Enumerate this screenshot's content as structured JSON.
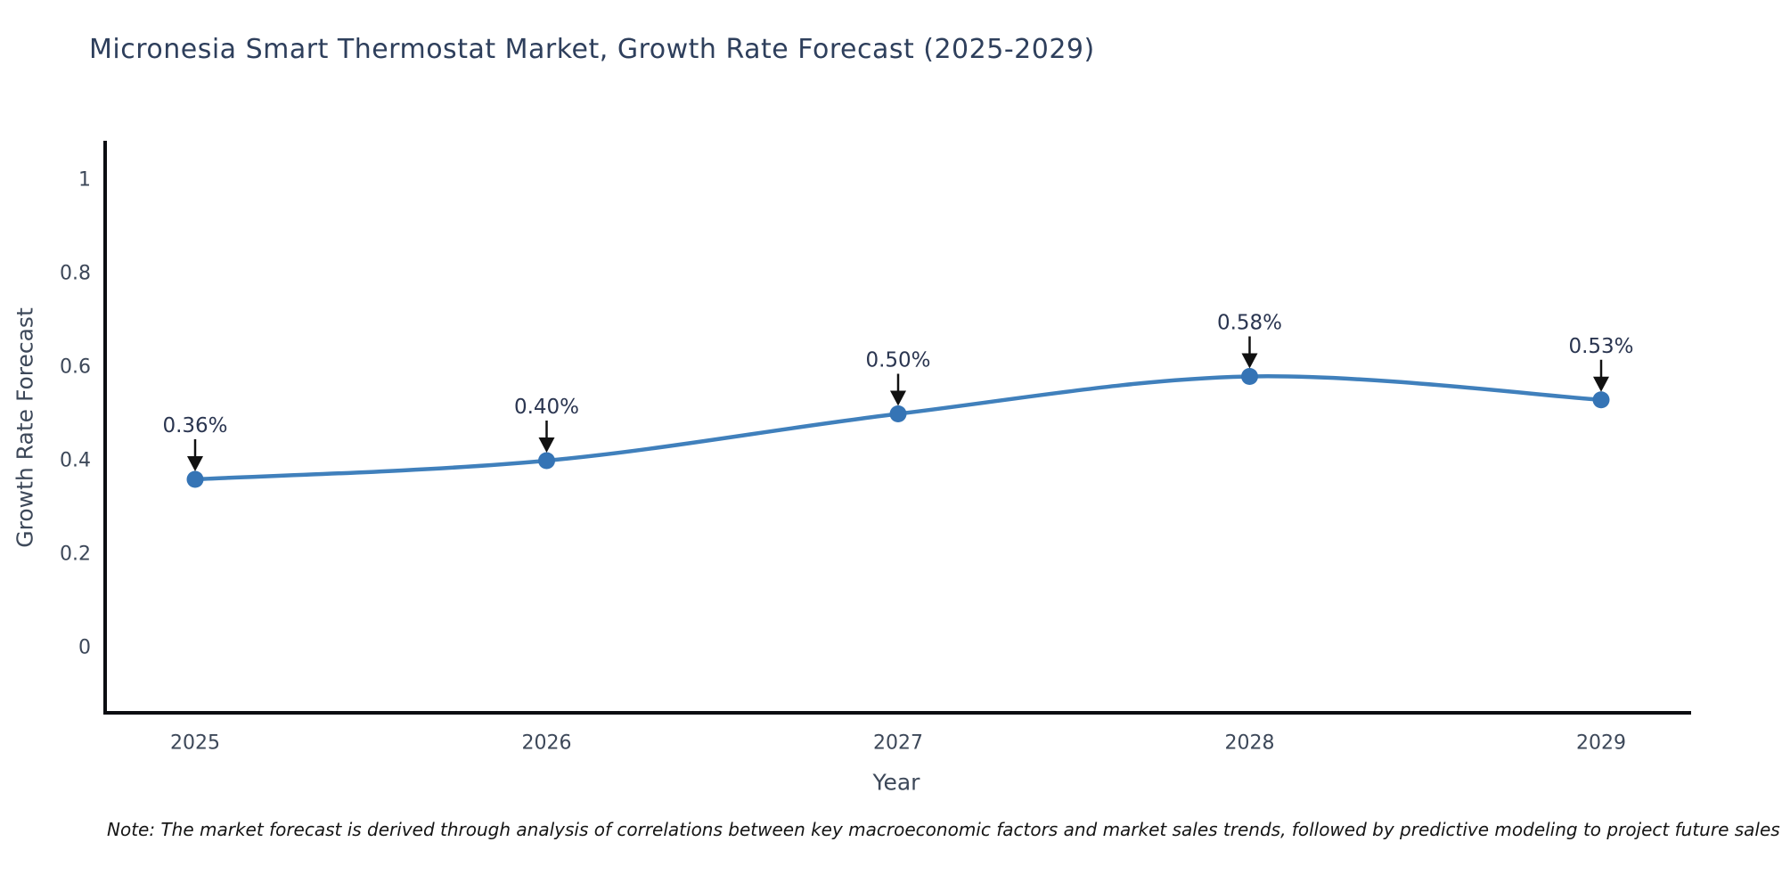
{
  "title": "Micronesia Smart Thermostat Market, Growth Rate Forecast (2025-2029)",
  "note": "Note: The market forecast is derived through analysis of correlations between key macroeconomic factors and market sales trends, followed by predictive modeling to project future sales",
  "chart_data": {
    "type": "line",
    "title": "Micronesia Smart Thermostat Market, Growth Rate Forecast (2025-2029)",
    "x": [
      2025,
      2026,
      2027,
      2028,
      2029
    ],
    "xtick_labels": [
      "2025",
      "2026",
      "2027",
      "2028",
      "2029"
    ],
    "series": [
      {
        "name": "Growth Rate Forecast",
        "values": [
          0.36,
          0.4,
          0.5,
          0.58,
          0.53
        ]
      }
    ],
    "point_labels": [
      "0.36%",
      "0.40%",
      "0.50%",
      "0.58%",
      "0.53%"
    ],
    "xlabel": "Year",
    "ylabel": "Growth Rate Forecast",
    "ylim": [
      -0.14,
      1.08
    ],
    "yticks": [
      0,
      0.2,
      0.4,
      0.6,
      0.8,
      1
    ],
    "ytick_labels": [
      "0",
      "0.2",
      "0.4",
      "0.6",
      "0.8",
      "1"
    ],
    "grid": false,
    "legend": "none",
    "line_shape": "spline",
    "colors": {
      "line": "#4080bc",
      "marker": "#3574b5",
      "axis": "#0c0e12",
      "tick_label": "#3d4859",
      "axis_title": "#3d4859",
      "annotation_text": "#2a3550",
      "annotation_arrow": "#111111",
      "title": "#2e3f5c",
      "background": "#ffffff"
    }
  }
}
